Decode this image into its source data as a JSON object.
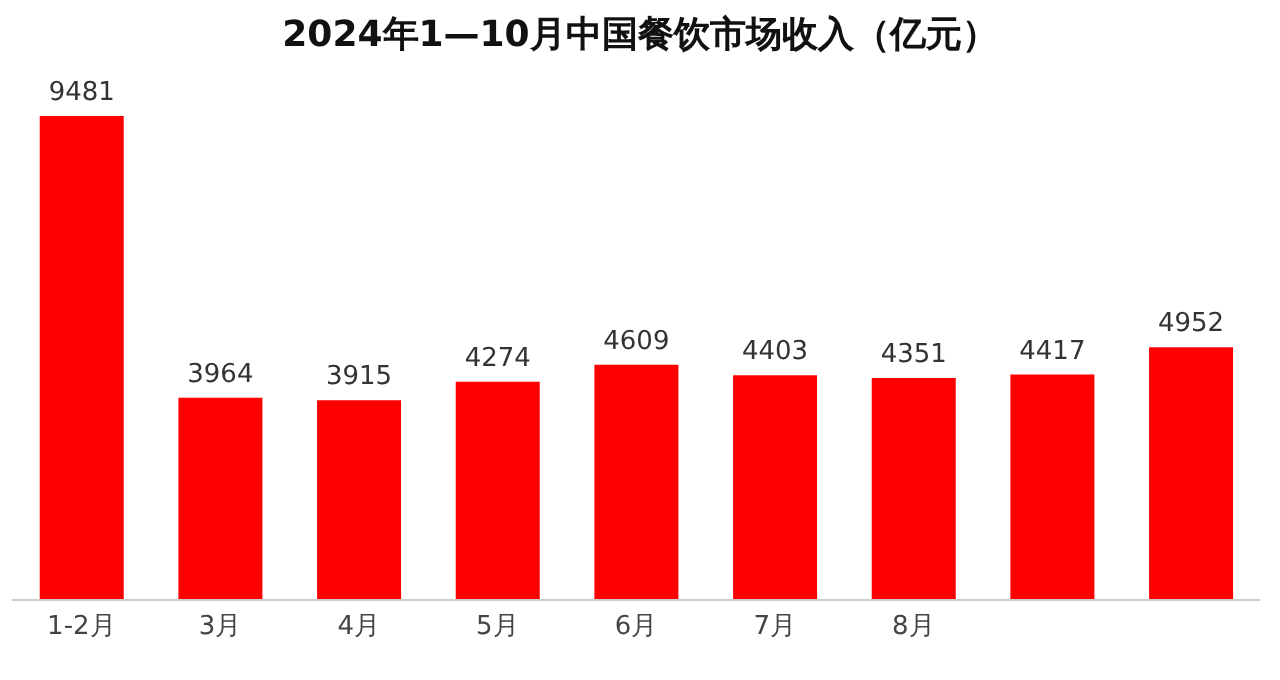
{
  "chart_data": {
    "type": "bar",
    "title": "2024年1—10月中国餐饮市场收入（亿元）",
    "categories": [
      "1-2月",
      "3月",
      "4月",
      "5月",
      "6月",
      "7月",
      "8月",
      null,
      null
    ],
    "values": [
      9481,
      3964,
      3915,
      4274,
      4609,
      4403,
      4351,
      4417,
      4952
    ],
    "color": "#ff0000",
    "data_labels": true
  }
}
